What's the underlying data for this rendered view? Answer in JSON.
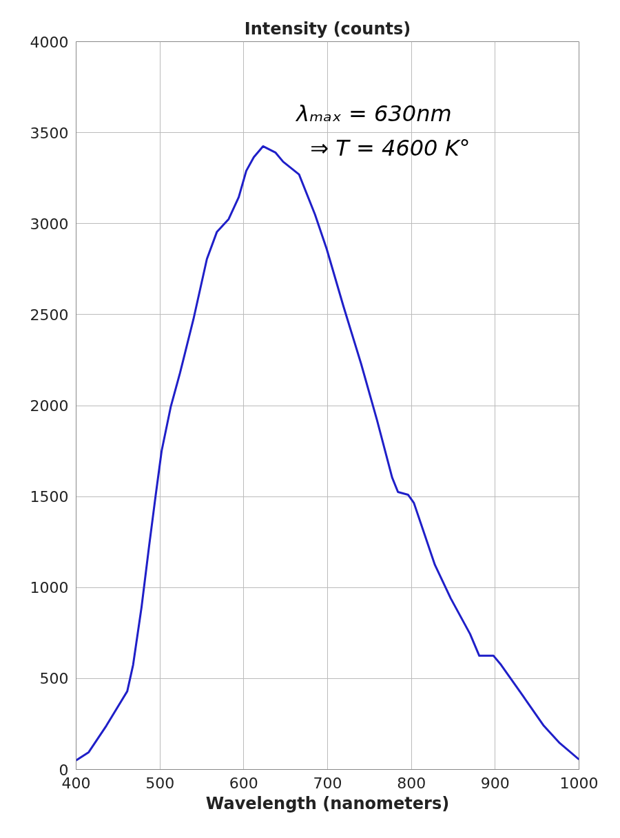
{
  "chart_data": {
    "type": "line",
    "title": "Intensity (counts)",
    "xlabel": "Wavelength (nanometers)",
    "x": [
      400,
      415,
      436,
      461,
      468,
      478,
      487,
      495,
      502,
      513,
      524,
      540,
      556,
      568,
      582,
      594,
      603,
      612,
      623,
      638,
      647,
      666,
      685,
      699,
      719,
      740,
      759,
      777,
      784,
      796,
      803,
      828,
      847,
      870,
      881,
      898,
      907,
      933,
      958,
      977,
      1000
    ],
    "series": [
      {
        "color": "#1f1fc8",
        "values": [
          50,
          95,
          240,
          430,
          575,
          890,
          1225,
          1510,
          1750,
          1995,
          2180,
          2475,
          2805,
          2955,
          3025,
          3145,
          3290,
          3365,
          3425,
          3390,
          3340,
          3270,
          3050,
          2860,
          2545,
          2230,
          1920,
          1605,
          1525,
          1510,
          1465,
          1125,
          940,
          745,
          625,
          625,
          575,
          405,
          240,
          145,
          55
        ]
      }
    ],
    "xlim": [
      400,
      1000
    ],
    "xticks": [
      400,
      500,
      600,
      700,
      800,
      900,
      1000
    ],
    "ylim": [
      0,
      4000
    ],
    "yticks": [
      0,
      500,
      1000,
      1500,
      2000,
      2500,
      3000,
      3500,
      4000
    ],
    "grid": true,
    "marker": "none",
    "line_style": "solid",
    "annotations": [
      {
        "text": "λₘₐₓ = 630nm",
        "x": 630,
        "y": 3420
      },
      "⇒ T = 4600 K°"
    ]
  }
}
